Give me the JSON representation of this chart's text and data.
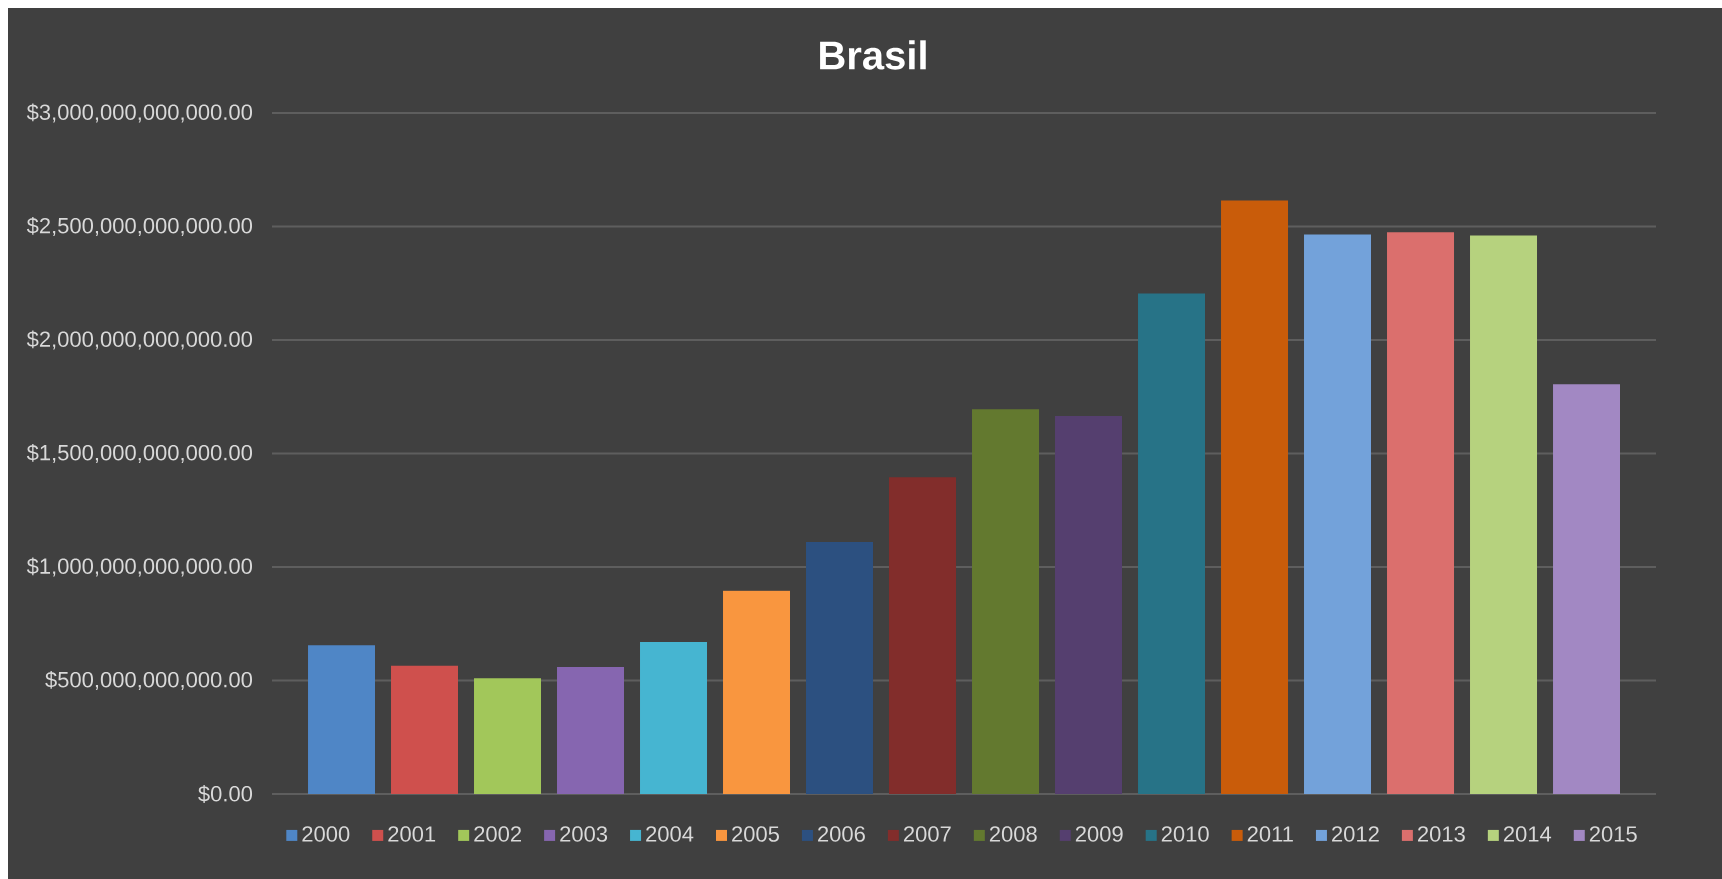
{
  "chart_data": {
    "type": "bar",
    "title": "Brasil",
    "categories": [
      null
    ],
    "series": [
      {
        "name": "2000",
        "color": "#4f86c6",
        "values": [
          655000000000
        ]
      },
      {
        "name": "2001",
        "color": "#cf504d",
        "values": [
          565000000000
        ]
      },
      {
        "name": "2002",
        "color": "#a2c75a",
        "values": [
          510000000000
        ]
      },
      {
        "name": "2003",
        "color": "#8666b0",
        "values": [
          560000000000
        ]
      },
      {
        "name": "2004",
        "color": "#46b5d1",
        "values": [
          670000000000
        ]
      },
      {
        "name": "2005",
        "color": "#f9963f",
        "values": [
          895000000000
        ]
      },
      {
        "name": "2006",
        "color": "#2c5080",
        "values": [
          1110000000000
        ]
      },
      {
        "name": "2007",
        "color": "#822d2b",
        "values": [
          1395000000000
        ]
      },
      {
        "name": "2008",
        "color": "#63792f",
        "values": [
          1695000000000
        ]
      },
      {
        "name": "2009",
        "color": "#553f6f",
        "values": [
          1665000000000
        ]
      },
      {
        "name": "2010",
        "color": "#277387",
        "values": [
          2205000000000
        ]
      },
      {
        "name": "2011",
        "color": "#c95c0a",
        "values": [
          2615000000000
        ]
      },
      {
        "name": "2012",
        "color": "#73a2da",
        "values": [
          2465000000000
        ]
      },
      {
        "name": "2013",
        "color": "#db6f6d",
        "values": [
          2475000000000
        ]
      },
      {
        "name": "2014",
        "color": "#b6d27e",
        "values": [
          2460000000000
        ]
      },
      {
        "name": "2015",
        "color": "#a288c3",
        "values": [
          1805000000000
        ]
      }
    ],
    "ylim": [
      0,
      3000000000000
    ],
    "yticks": [
      {
        "value": 0,
        "label": "$0.00"
      },
      {
        "value": 500000000000,
        "label": "$500,000,000,000.00"
      },
      {
        "value": 1000000000000,
        "label": "$1,000,000,000,000.00"
      },
      {
        "value": 1500000000000,
        "label": "$1,500,000,000,000.00"
      },
      {
        "value": 2000000000000,
        "label": "$2,000,000,000,000.00"
      },
      {
        "value": 2500000000000,
        "label": "$2,500,000,000,000.00"
      },
      {
        "value": 3000000000000,
        "label": "$3,000,000,000,000.00"
      }
    ],
    "grid": "y",
    "legend": "bottom"
  }
}
